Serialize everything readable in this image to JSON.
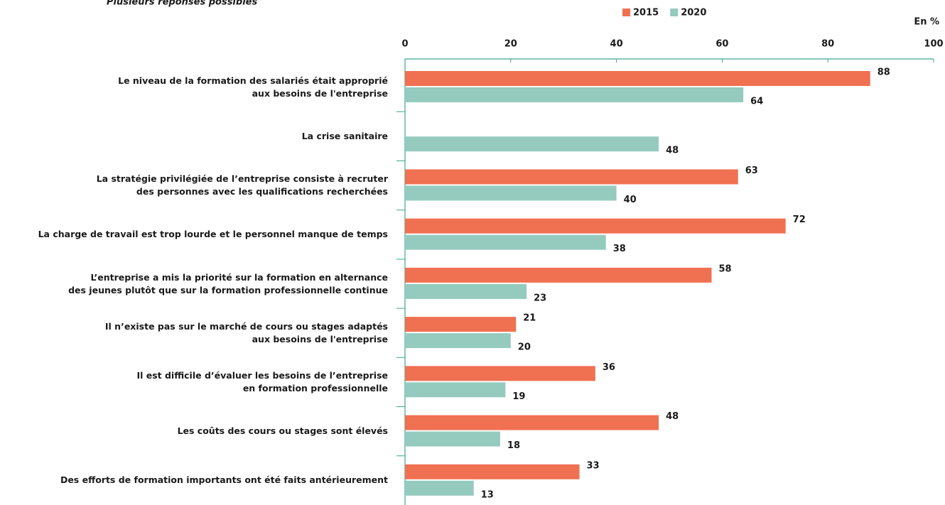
{
  "chart_data": {
    "type": "bar",
    "orientation": "horizontal",
    "subtitle": "Plusieurs réponses possibles",
    "unit_label": "En %",
    "categories": [
      "Le niveau de la formation des salariés était approprié\naux besoins de l'entreprise",
      "La crise sanitaire",
      "La stratégie privilégiée de l’entreprise consiste à recruter\ndes personnes avec les qualifications recherchées",
      "La charge de travail est trop lourde et le personnel manque de temps",
      "L’entreprise a mis la priorité sur la formation en alternance\ndes jeunes plutôt que sur la formation professionnelle continue",
      "Il n’existe pas sur le marché de cours ou stages adaptés\naux besoins de l'entreprise",
      "Il est difficile d’évaluer les besoins de l’entreprise\nen formation professionnelle",
      "Les coûts des cours ou stages sont élevés",
      "Des efforts de formation importants ont été faits antérieurement"
    ],
    "series": [
      {
        "name": "2015",
        "color": "#f07052",
        "values": [
          88,
          null,
          63,
          72,
          58,
          21,
          36,
          48,
          33
        ]
      },
      {
        "name": "2020",
        "color": "#95cbbf",
        "values": [
          64,
          48,
          40,
          38,
          23,
          20,
          19,
          18,
          13
        ]
      }
    ],
    "xlim": [
      0,
      100
    ],
    "xticks": [
      0,
      20,
      40,
      60,
      80,
      100
    ],
    "legend": "top"
  }
}
